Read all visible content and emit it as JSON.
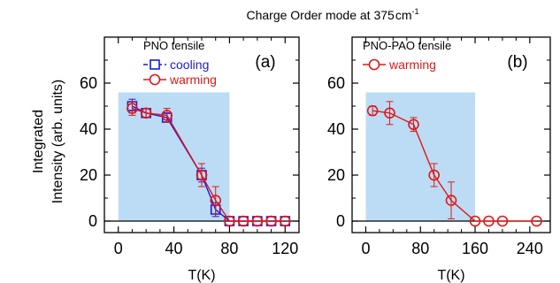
{
  "figure": {
    "title": "Charge Order mode at 375",
    "title_unit": "cm",
    "title_unit_exp": "-1",
    "ylabel_line1": "Integrated",
    "ylabel_line2": "Intensity (arb. units)"
  },
  "chart_data": [
    {
      "type": "line",
      "panel_label": "(a)",
      "sample_label": "PNO tensile",
      "xlabel": "T(K)",
      "ylabel": "Integrated Intensity (arb. units)",
      "xlim": [
        -10,
        130
      ],
      "ylim": [
        -5,
        80
      ],
      "xticks": [
        0,
        40,
        80,
        120
      ],
      "yticks": [
        0,
        20,
        40,
        60
      ],
      "grid": false,
      "legend_position": "top-left",
      "shaded_region": {
        "x": [
          0,
          80
        ],
        "y": [
          0,
          56
        ],
        "color": "#bcdcf5"
      },
      "series": [
        {
          "name": "cooling",
          "marker": "square",
          "color": "#1a1adc",
          "x": [
            10,
            20,
            35,
            60,
            70,
            80,
            90,
            100,
            110,
            120
          ],
          "y": [
            50,
            47,
            45,
            20,
            5,
            0,
            0,
            0,
            0,
            0
          ],
          "err": [
            3,
            2,
            2,
            3,
            3,
            0,
            0,
            0,
            0,
            0
          ]
        },
        {
          "name": "warming",
          "marker": "circle",
          "color": "#e01818",
          "x": [
            10,
            20,
            35,
            60,
            70,
            80,
            90,
            100,
            110,
            120
          ],
          "y": [
            49,
            47,
            46,
            20,
            9,
            0,
            0,
            0,
            0,
            0
          ],
          "err": [
            3,
            2,
            3,
            5,
            6,
            0,
            0,
            0,
            0,
            0
          ]
        }
      ]
    },
    {
      "type": "line",
      "panel_label": "(b)",
      "sample_label": "PNO-PAO tensile",
      "xlabel": "T(K)",
      "ylabel": "",
      "xlim": [
        -20,
        270
      ],
      "ylim": [
        -5,
        80
      ],
      "xticks": [
        0,
        80,
        160,
        240
      ],
      "yticks": [
        0,
        20,
        40,
        60
      ],
      "grid": false,
      "legend_position": "top-left",
      "shaded_region": {
        "x": [
          0,
          160
        ],
        "y": [
          0,
          56
        ],
        "color": "#bcdcf5"
      },
      "series": [
        {
          "name": "warming",
          "marker": "circle",
          "color": "#e01818",
          "x": [
            10,
            35,
            70,
            100,
            125,
            160,
            180,
            200,
            250
          ],
          "y": [
            48,
            47,
            42,
            20,
            9,
            0,
            0,
            0,
            0
          ],
          "err": [
            2,
            5,
            3,
            5,
            8,
            0,
            0,
            0,
            0
          ]
        }
      ]
    }
  ]
}
